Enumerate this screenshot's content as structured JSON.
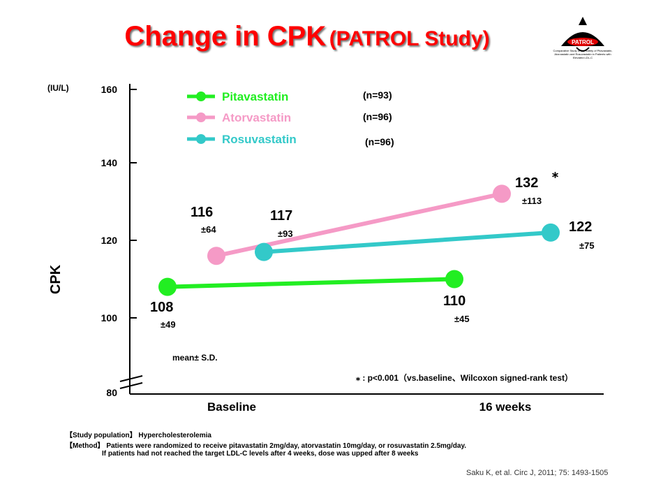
{
  "title": {
    "main": "Change in CPK",
    "sub": "(PATROL Study)"
  },
  "logo": {
    "label": "PATROL",
    "caption": "Comparative Study of the Safety of Pitavastatin, Atorvastatin and Rosuvastatin in Patients with Elevated LDL-C"
  },
  "chart_data": {
    "type": "line",
    "ylabel": "CPK",
    "yunit": "(IU/L)",
    "categories": [
      "Baseline",
      "16 weeks"
    ],
    "y_ticks": [
      80,
      100,
      120,
      140,
      160
    ],
    "ylim": [
      80,
      160
    ],
    "axis_break": true,
    "series": [
      {
        "name": "Pitavastatin",
        "n": "(n=93)",
        "color": "#22ee22",
        "values": [
          108,
          110
        ],
        "sd": [
          "±49",
          "±45"
        ]
      },
      {
        "name": "Atorvastatin",
        "n": "(n=96)",
        "color": "#f59ac6",
        "values": [
          116,
          132
        ],
        "sd": [
          "±64",
          "±113"
        ]
      },
      {
        "name": "Rosuvastatin",
        "n": "(n=96)",
        "color": "#33c9c9",
        "values": [
          117,
          122
        ],
        "sd": [
          "±93",
          "±75"
        ]
      }
    ],
    "significance_marker": "⁎",
    "notes": {
      "mean_sd": "mean± S.D.",
      "significance": "⁎ : p<0.001（vs.baseline、Wilcoxon signed-rank test）"
    }
  },
  "footnotes": {
    "population": "【Study population】 Hypercholesterolemia",
    "method": "【Method】 Patients were randomized to receive pitavastatin 2mg/day, atorvastatin 10mg/day, or rosuvastatin 2.5mg/day.",
    "method2": "If patients had not reached the target LDL-C levels after 4 weeks, dose was upped after 8 weeks"
  },
  "citation": "Saku K, et al. Circ J, 2011; 75: 1493-1505"
}
